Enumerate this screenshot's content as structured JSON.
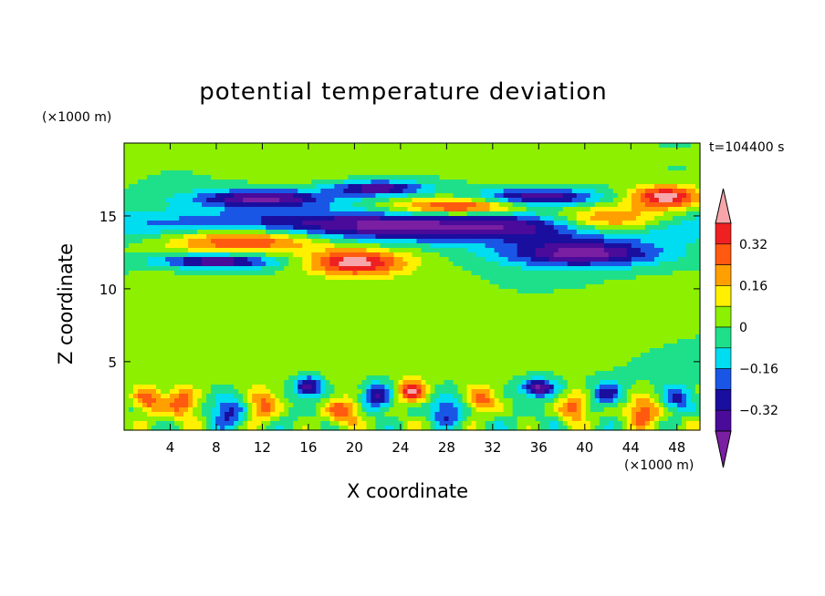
{
  "chart_data": {
    "type": "heatmap",
    "title": "potential temperature deviation",
    "xlabel": "X coordinate",
    "ylabel": "Z coordinate",
    "x_unit_label": "(×1000 m)",
    "y_unit_label": "(×1000 m)",
    "time_label": "t=104400 s",
    "xlim": [
      0,
      50
    ],
    "ylim": [
      0.3,
      20
    ],
    "x_ticks": [
      4,
      8,
      12,
      16,
      20,
      24,
      28,
      32,
      36,
      40,
      44,
      48
    ],
    "y_ticks": [
      5,
      10,
      15
    ],
    "colorbar": {
      "levels": [
        -0.4,
        -0.32,
        -0.24,
        -0.16,
        -0.08,
        0,
        0.08,
        0.16,
        0.24,
        0.32,
        0.4
      ],
      "tick_labels": [
        "0.32",
        "0.16",
        "0",
        "−0.16",
        "−0.32"
      ],
      "tick_values": [
        0.32,
        0.16,
        0,
        -0.16,
        -0.32
      ],
      "colors": [
        "#7a1fa2",
        "#4a0a9a",
        "#1a0e9e",
        "#1a56e6",
        "#00dcf0",
        "#1fe08a",
        "#8cf000",
        "#fff000",
        "#ffa000",
        "#ff5a10",
        "#ef2020",
        "#f6a6aa"
      ]
    },
    "fields": [
      {
        "x": 25,
        "z": 14.3,
        "rx": 25,
        "rz": 1.1,
        "v": -0.45
      },
      {
        "x": 11,
        "z": 13.4,
        "rx": 7,
        "rz": 0.9,
        "v": 0.45
      },
      {
        "x": 20,
        "z": 11.8,
        "rx": 4.2,
        "rz": 0.9,
        "v": 0.45
      },
      {
        "x": 42,
        "z": 14.7,
        "rx": 5,
        "rz": 0.9,
        "v": 0.45
      },
      {
        "x": 29,
        "z": 15.6,
        "rx": 6,
        "rz": 0.6,
        "v": 0.42
      },
      {
        "x": 47,
        "z": 16.3,
        "rx": 3,
        "rz": 0.8,
        "v": 0.45
      },
      {
        "x": 8,
        "z": 11.9,
        "rx": 5,
        "rz": 0.5,
        "v": -0.42
      },
      {
        "x": 40,
        "z": 12.4,
        "rx": 7,
        "rz": 0.9,
        "v": -0.42
      },
      {
        "x": 12,
        "z": 16.2,
        "rx": 6,
        "rz": 0.6,
        "v": -0.42
      },
      {
        "x": 36,
        "z": 16.3,
        "rx": 5,
        "rz": 0.6,
        "v": -0.4
      },
      {
        "x": 22,
        "z": 16.9,
        "rx": 4,
        "rz": 0.5,
        "v": -0.38
      },
      {
        "x": 15,
        "z": 6.5,
        "rx": 14,
        "rz": 3,
        "v": 0.05
      },
      {
        "x": 44,
        "z": 7.5,
        "rx": 6,
        "rz": 2,
        "v": 0.04
      },
      {
        "x": 25,
        "z": 19,
        "rx": 25,
        "rz": 1.5,
        "v": 0.05
      },
      {
        "x": 2,
        "z": 2.4,
        "rx": 1.2,
        "rz": 0.9,
        "v": 0.3
      },
      {
        "x": 5,
        "z": 2.2,
        "rx": 1.4,
        "rz": 1,
        "v": 0.3
      },
      {
        "x": 9,
        "z": 1.6,
        "rx": 1.5,
        "rz": 1,
        "v": -0.3
      },
      {
        "x": 12,
        "z": 2.0,
        "rx": 1.3,
        "rz": 1.1,
        "v": 0.28
      },
      {
        "x": 16,
        "z": 3.3,
        "rx": 1.2,
        "rz": 0.7,
        "v": -0.4
      },
      {
        "x": 19,
        "z": 1.5,
        "rx": 1.5,
        "rz": 1.0,
        "v": 0.3
      },
      {
        "x": 22,
        "z": 2.6,
        "rx": 1.2,
        "rz": 0.9,
        "v": -0.35
      },
      {
        "x": 25,
        "z": 3.0,
        "rx": 1.2,
        "rz": 0.8,
        "v": 0.4
      },
      {
        "x": 28,
        "z": 1.6,
        "rx": 1.4,
        "rz": 1.0,
        "v": -0.3
      },
      {
        "x": 31,
        "z": 2.4,
        "rx": 1.3,
        "rz": 0.9,
        "v": 0.3
      },
      {
        "x": 36,
        "z": 3.2,
        "rx": 1.5,
        "rz": 0.6,
        "v": -0.42
      },
      {
        "x": 39,
        "z": 1.8,
        "rx": 1.2,
        "rz": 1.0,
        "v": 0.3
      },
      {
        "x": 42,
        "z": 2.8,
        "rx": 1.3,
        "rz": 0.8,
        "v": -0.3
      },
      {
        "x": 45,
        "z": 1.6,
        "rx": 1.4,
        "rz": 1.0,
        "v": 0.32
      },
      {
        "x": 48,
        "z": 2.5,
        "rx": 1.2,
        "rz": 0.9,
        "v": -0.28
      }
    ]
  }
}
